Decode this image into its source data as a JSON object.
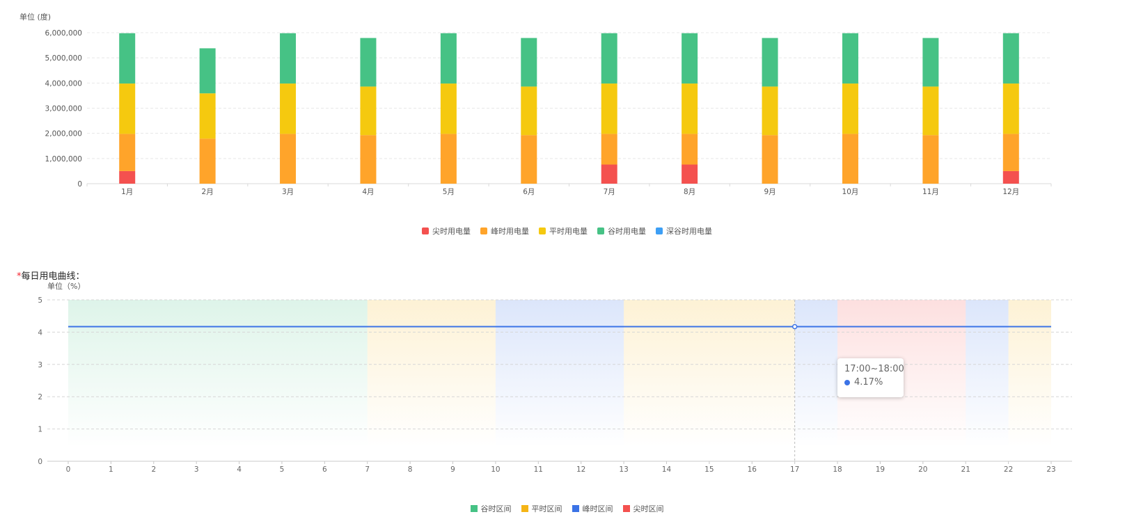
{
  "chart_data": [
    {
      "type": "bar",
      "stacked": true,
      "unit_label": "单位 (度)",
      "categories": [
        "1月",
        "2月",
        "3月",
        "4月",
        "5月",
        "6月",
        "7月",
        "8月",
        "9月",
        "10月",
        "11月",
        "12月"
      ],
      "y_ticks": [
        "0",
        "1,000,000",
        "2,000,000",
        "3,000,000",
        "4,000,000",
        "5,000,000",
        "6,000,000"
      ],
      "ylim": [
        0,
        6000000
      ],
      "series": [
        {
          "name": "尖时用电量",
          "color": "#f4514f",
          "values": [
            500000,
            0,
            0,
            0,
            0,
            0,
            760000,
            760000,
            0,
            0,
            0,
            500000
          ]
        },
        {
          "name": "峰时用电量",
          "color": "#ffa42a",
          "values": [
            1480000,
            1790000,
            1980000,
            1930000,
            1980000,
            1930000,
            1220000,
            1220000,
            1930000,
            1980000,
            1930000,
            1480000
          ]
        },
        {
          "name": "平时用电量",
          "color": "#f5c90f",
          "values": [
            2000000,
            1800000,
            2000000,
            1930000,
            2000000,
            1930000,
            2000000,
            2000000,
            1930000,
            2000000,
            1930000,
            2000000
          ]
        },
        {
          "name": "谷时用电量",
          "color": "#46c285",
          "values": [
            2000000,
            1790000,
            2000000,
            1930000,
            2000000,
            1930000,
            2000000,
            2000000,
            1930000,
            2000000,
            1930000,
            2000000
          ]
        },
        {
          "name": "深谷时用电量",
          "color": "#3d9ff5",
          "values": [
            0,
            0,
            0,
            0,
            0,
            0,
            0,
            0,
            0,
            0,
            0,
            0
          ]
        }
      ],
      "grid": true,
      "legend_position": "bottom-center"
    },
    {
      "type": "line",
      "title": "每日用电曲线：",
      "unit_label": "单位（%）",
      "x": [
        "0",
        "1",
        "2",
        "3",
        "4",
        "5",
        "6",
        "7",
        "8",
        "9",
        "10",
        "11",
        "12",
        "13",
        "14",
        "15",
        "16",
        "17",
        "18",
        "19",
        "20",
        "21",
        "22",
        "23"
      ],
      "y_ticks": [
        "0",
        "1",
        "2",
        "3",
        "4",
        "5"
      ],
      "ylim": [
        0,
        5
      ],
      "series": [
        {
          "name": "",
          "color": "#3b73e6",
          "values": [
            4.17,
            4.17,
            4.17,
            4.17,
            4.17,
            4.17,
            4.17,
            4.17,
            4.17,
            4.17,
            4.17,
            4.17,
            4.17,
            4.17,
            4.17,
            4.17,
            4.17,
            4.17,
            4.17,
            4.17,
            4.17,
            4.17,
            4.17,
            4.17
          ]
        }
      ],
      "bands": [
        {
          "from": 0,
          "to": 7,
          "type": "谷时区间"
        },
        {
          "from": 7,
          "to": 10,
          "type": "平时区间"
        },
        {
          "from": 10,
          "to": 13,
          "type": "峰时区间"
        },
        {
          "from": 13,
          "to": 17,
          "type": "平时区间"
        },
        {
          "from": 17,
          "to": 18,
          "type": "峰时区间"
        },
        {
          "from": 18,
          "to": 21,
          "type": "尖时区间"
        },
        {
          "from": 21,
          "to": 22,
          "type": "峰时区间"
        },
        {
          "from": 22,
          "to": 23,
          "type": "平时区间"
        }
      ],
      "legend": [
        {
          "name": "谷时区间",
          "color": "#46c285"
        },
        {
          "name": "平时区间",
          "color": "#f5b516"
        },
        {
          "name": "峰时区间",
          "color": "#3b73e6"
        },
        {
          "name": "尖时区间",
          "color": "#f4514f"
        }
      ],
      "tooltip": {
        "x": 17,
        "time": "17:00~18:00",
        "value": "4.17%"
      },
      "grid": true,
      "legend_position": "bottom-center"
    }
  ]
}
